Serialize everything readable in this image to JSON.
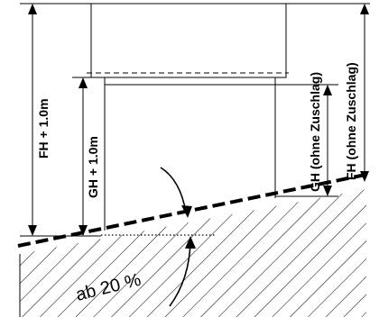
{
  "labels": {
    "fh_total": "FH  + 1.0m",
    "gh_total": "GH  + 1.0m",
    "gh_no_surcharge": "GH (ohne Zuschlag)",
    "fh_no_surcharge": "FH (ohne Zuschlag)",
    "slope": "ab 20 %"
  }
}
